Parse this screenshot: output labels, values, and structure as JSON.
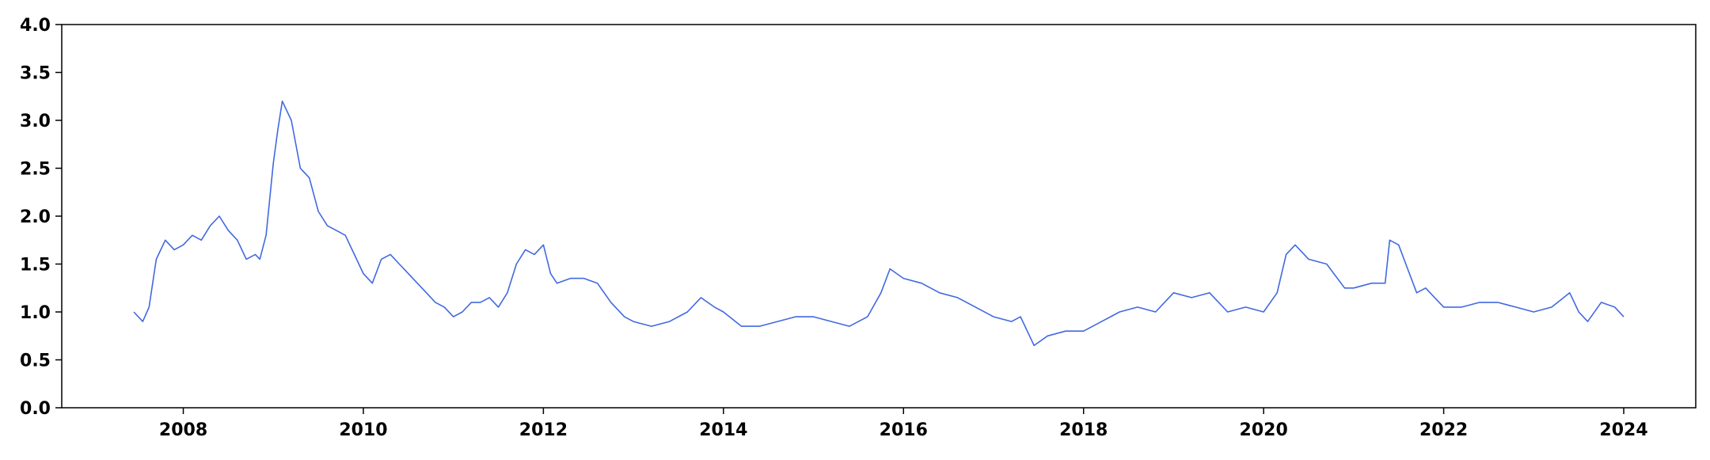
{
  "chart_data": {
    "type": "line",
    "title": "",
    "xlabel": "",
    "ylabel": "",
    "xlim": [
      2006.65,
      2024.8
    ],
    "ylim": [
      0,
      4.0
    ],
    "grid": false,
    "legend": "none",
    "x_ticks": [
      2008,
      2010,
      2012,
      2014,
      2016,
      2018,
      2020,
      2022,
      2024
    ],
    "x_tick_labels": [
      "2008",
      "2010",
      "2012",
      "2014",
      "2016",
      "2018",
      "2020",
      "2022",
      "2024"
    ],
    "y_ticks": [
      0,
      0.5,
      1.0,
      1.5,
      2.0,
      2.5,
      3.0,
      3.5,
      4.0
    ],
    "y_tick_labels": [
      "0.0",
      "0.5",
      "1.0",
      "1.5",
      "2.0",
      "2.5",
      "3.0",
      "3.5",
      "4.0"
    ],
    "series": [
      {
        "color": "#4169e1",
        "x": [
          2007.45,
          2007.55,
          2007.62,
          2007.7,
          2007.8,
          2007.9,
          2008.0,
          2008.1,
          2008.2,
          2008.3,
          2008.4,
          2008.5,
          2008.6,
          2008.7,
          2008.8,
          2008.85,
          2008.92,
          2009.0,
          2009.05,
          2009.1,
          2009.2,
          2009.3,
          2009.4,
          2009.5,
          2009.6,
          2009.7,
          2009.8,
          2009.9,
          2010.0,
          2010.1,
          2010.2,
          2010.3,
          2010.4,
          2010.5,
          2010.6,
          2010.7,
          2010.8,
          2010.9,
          2011.0,
          2011.1,
          2011.2,
          2011.3,
          2011.4,
          2011.5,
          2011.6,
          2011.7,
          2011.8,
          2011.9,
          2012.0,
          2012.08,
          2012.15,
          2012.3,
          2012.45,
          2012.6,
          2012.75,
          2012.9,
          2013.0,
          2013.2,
          2013.4,
          2013.6,
          2013.75,
          2013.9,
          2014.0,
          2014.2,
          2014.4,
          2014.6,
          2014.8,
          2015.0,
          2015.2,
          2015.4,
          2015.6,
          2015.75,
          2015.85,
          2016.0,
          2016.2,
          2016.4,
          2016.6,
          2016.8,
          2017.0,
          2017.2,
          2017.3,
          2017.4,
          2017.45,
          2017.6,
          2017.8,
          2018.0,
          2018.2,
          2018.4,
          2018.6,
          2018.8,
          2019.0,
          2019.2,
          2019.4,
          2019.6,
          2019.8,
          2020.0,
          2020.15,
          2020.25,
          2020.35,
          2020.5,
          2020.7,
          2020.9,
          2021.0,
          2021.2,
          2021.35,
          2021.4,
          2021.5,
          2021.6,
          2021.7,
          2021.8,
          2021.9,
          2022.0,
          2022.2,
          2022.4,
          2022.6,
          2022.8,
          2023.0,
          2023.2,
          2023.4,
          2023.5,
          2023.6,
          2023.75,
          2023.9,
          2024.0
        ],
        "y": [
          1.0,
          0.9,
          1.05,
          1.55,
          1.75,
          1.65,
          1.7,
          1.8,
          1.75,
          1.9,
          2.0,
          1.85,
          1.75,
          1.55,
          1.6,
          1.55,
          1.8,
          2.55,
          2.9,
          3.2,
          3.0,
          2.5,
          2.4,
          2.05,
          1.9,
          1.85,
          1.8,
          1.6,
          1.4,
          1.3,
          1.55,
          1.6,
          1.5,
          1.4,
          1.3,
          1.2,
          1.1,
          1.05,
          0.95,
          1.0,
          1.1,
          1.1,
          1.15,
          1.05,
          1.2,
          1.5,
          1.65,
          1.6,
          1.7,
          1.4,
          1.3,
          1.35,
          1.35,
          1.3,
          1.1,
          0.95,
          0.9,
          0.85,
          0.9,
          1.0,
          1.15,
          1.05,
          1.0,
          0.85,
          0.85,
          0.9,
          0.95,
          0.95,
          0.9,
          0.85,
          0.95,
          1.2,
          1.45,
          1.35,
          1.3,
          1.2,
          1.15,
          1.05,
          0.95,
          0.9,
          0.95,
          0.75,
          0.65,
          0.75,
          0.8,
          0.8,
          0.9,
          1.0,
          1.05,
          1.0,
          1.2,
          1.15,
          1.2,
          1.0,
          1.05,
          1.0,
          1.2,
          1.6,
          1.7,
          1.55,
          1.5,
          1.25,
          1.25,
          1.3,
          1.3,
          1.75,
          1.7,
          1.45,
          1.2,
          1.25,
          1.15,
          1.05,
          1.05,
          1.1,
          1.1,
          1.05,
          1.0,
          1.05,
          1.2,
          1.0,
          0.9,
          1.1,
          1.05,
          0.95
        ]
      }
    ]
  }
}
